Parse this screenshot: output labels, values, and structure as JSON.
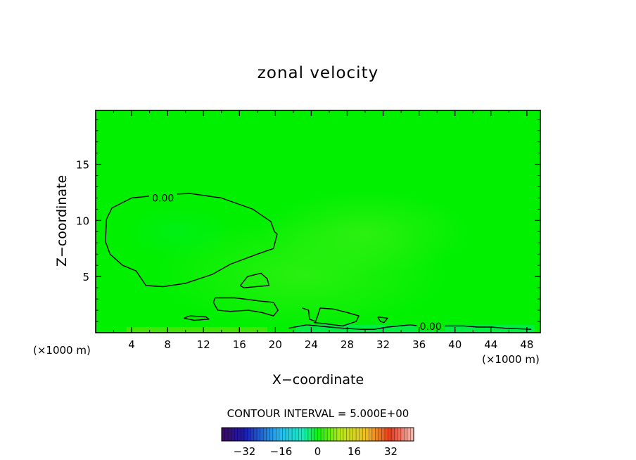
{
  "chart_data": {
    "type": "heatmap",
    "title": "zonal velocity",
    "xlabel": "X−coordinate",
    "ylabel": "Z−coordinate",
    "x_units_left": "(×1000 m)",
    "x_units_right": "(×1000 m)",
    "xlim": [
      0,
      49.5
    ],
    "ylim": [
      0,
      19.8
    ],
    "x_ticks": [
      4,
      8,
      12,
      16,
      20,
      24,
      28,
      32,
      36,
      40,
      44,
      48
    ],
    "y_ticks": [
      5,
      10,
      15
    ],
    "grid": false,
    "background_value": 0,
    "contour_labels": [
      {
        "text": "0.00",
        "x": 7.5,
        "y": 12.0
      },
      {
        "text": "0.00",
        "x": 37.3,
        "y": 0.55
      }
    ],
    "contours": [
      {
        "level": 0,
        "points": [
          [
            1.8,
            11.1
          ],
          [
            4,
            12.0
          ],
          [
            7.5,
            12.3
          ],
          [
            10.5,
            12.4
          ],
          [
            14,
            12.0
          ],
          [
            17.5,
            11.0
          ],
          [
            19.5,
            9.9
          ],
          [
            19.9,
            9.0
          ],
          [
            20.2,
            8.8
          ],
          [
            19.8,
            7.5
          ],
          [
            18,
            7.0
          ],
          [
            15,
            6.1
          ],
          [
            13,
            5.2
          ],
          [
            10,
            4.4
          ],
          [
            7.5,
            4.1
          ],
          [
            5.6,
            4.2
          ],
          [
            4.5,
            5.5
          ],
          [
            3.0,
            6.0
          ],
          [
            1.6,
            7.0
          ],
          [
            1.1,
            8.1
          ],
          [
            1.2,
            10.1
          ],
          [
            1.8,
            11.1
          ]
        ]
      },
      {
        "level": 0,
        "points": [
          [
            16.1,
            4.2
          ],
          [
            16.9,
            5.0
          ],
          [
            18.4,
            5.3
          ],
          [
            19.1,
            4.8
          ],
          [
            19.3,
            4.2
          ],
          [
            17.8,
            4.1
          ],
          [
            16.5,
            4.0
          ],
          [
            16.1,
            4.2
          ]
        ]
      },
      {
        "level": 0,
        "points": [
          [
            13.1,
            2.7
          ],
          [
            13.3,
            3.1
          ],
          [
            15.5,
            3.1
          ],
          [
            18.5,
            2.8
          ],
          [
            19.8,
            2.7
          ],
          [
            20.3,
            2.0
          ],
          [
            19.8,
            1.5
          ],
          [
            18.5,
            1.8
          ],
          [
            17.0,
            2.0
          ],
          [
            15.0,
            1.9
          ],
          [
            13.6,
            2.0
          ],
          [
            13.1,
            2.7
          ]
        ]
      },
      {
        "level": 0,
        "points": [
          [
            9.8,
            1.3
          ],
          [
            10.5,
            1.5
          ],
          [
            12.3,
            1.4
          ],
          [
            12.6,
            1.2
          ],
          [
            11,
            1.1
          ],
          [
            9.8,
            1.3
          ]
        ]
      },
      {
        "level": 0,
        "points": [
          [
            21.5,
            0.4
          ],
          [
            23.5,
            0.7
          ],
          [
            26,
            0.5
          ],
          [
            27.5,
            0.4
          ],
          [
            29.5,
            0.3
          ],
          [
            31,
            0.3
          ],
          [
            32.5,
            0.5
          ],
          [
            35,
            0.7
          ],
          [
            37,
            0.5
          ],
          [
            39,
            0.6
          ],
          [
            41,
            0.6
          ],
          [
            42.5,
            0.5
          ],
          [
            44,
            0.5
          ],
          [
            45.5,
            0.4
          ],
          [
            48.5,
            0.3
          ]
        ]
      },
      {
        "level": 0,
        "points": [
          [
            23.0,
            2.2
          ],
          [
            23.7,
            2.0
          ],
          [
            23.8,
            1.2
          ],
          [
            24.5,
            1.0
          ],
          [
            25.0,
            2.2
          ],
          [
            26.5,
            2.1
          ],
          [
            28.0,
            1.8
          ],
          [
            29.3,
            1.5
          ],
          [
            29.0,
            1.0
          ],
          [
            27.5,
            0.6
          ],
          [
            25.5,
            0.8
          ],
          [
            24.3,
            0.9
          ]
        ]
      },
      {
        "level": 0,
        "points": [
          [
            31.4,
            1.4
          ],
          [
            32.5,
            1.3
          ],
          [
            32.1,
            0.9
          ],
          [
            31.7,
            1.0
          ],
          [
            31.4,
            1.4
          ]
        ]
      }
    ],
    "colorbar": {
      "title": "CONTOUR INTERVAL = 5.000E+00",
      "tick_labels": [
        "−32",
        "−16",
        "0",
        "16",
        "32"
      ],
      "tick_values": [
        -32,
        -16,
        0,
        16,
        32
      ],
      "range": [
        -42,
        42
      ]
    }
  }
}
